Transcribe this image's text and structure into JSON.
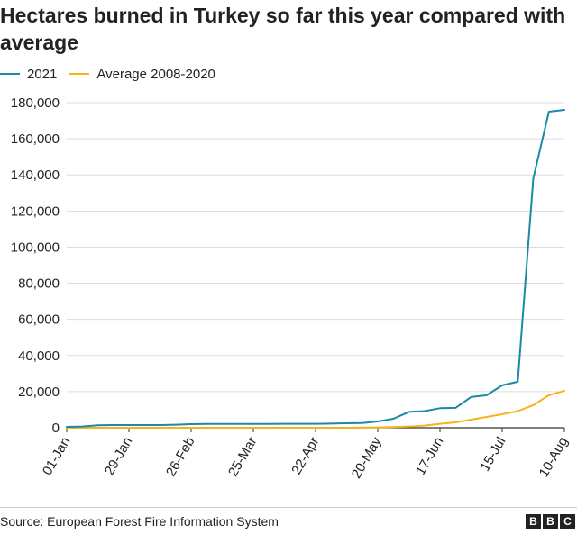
{
  "title": "Hectares burned in Turkey so far this year compared with average",
  "legend": [
    {
      "label": "2021",
      "color": "#1a8aa5"
    },
    {
      "label": "Average 2008-2020",
      "color": "#f5b41b"
    }
  ],
  "source": "Source: European Forest Fire Information System",
  "logo": [
    "B",
    "B",
    "C"
  ],
  "chart_data": {
    "type": "line",
    "xlabel": "",
    "ylabel": "",
    "x": [
      "01-Jan",
      "08-Jan",
      "15-Jan",
      "22-Jan",
      "29-Jan",
      "05-Feb",
      "12-Feb",
      "19-Feb",
      "26-Feb",
      "05-Mar",
      "12-Mar",
      "19-Mar",
      "25-Mar",
      "01-Apr",
      "08-Apr",
      "15-Apr",
      "22-Apr",
      "29-Apr",
      "06-May",
      "13-May",
      "20-May",
      "27-May",
      "03-Jun",
      "10-Jun",
      "17-Jun",
      "24-Jun",
      "01-Jul",
      "08-Jul",
      "15-Jul",
      "22-Jul",
      "29-Jul",
      "05-Aug",
      "10-Aug"
    ],
    "x_tick_labels": [
      "01-Jan",
      "29-Jan",
      "26-Feb",
      "25-Mar",
      "22-Apr",
      "20-May",
      "17-Jun",
      "15-Jul",
      "10-Aug"
    ],
    "x_tick_index": [
      0,
      4,
      8,
      12,
      16,
      20,
      24,
      28,
      32
    ],
    "ylim": [
      0,
      180000
    ],
    "y_ticks": [
      0,
      20000,
      40000,
      60000,
      80000,
      100000,
      120000,
      140000,
      160000,
      180000
    ],
    "y_tick_labels": [
      "0",
      "20,000",
      "40,000",
      "60,000",
      "80,000",
      "100,000",
      "120,000",
      "140,000",
      "160,000",
      "180,000"
    ],
    "grid": "horizontal",
    "legend_position": "top-left",
    "series": [
      {
        "name": "2021",
        "color": "#1a8aa5",
        "values": [
          500,
          700,
          1400,
          1500,
          1500,
          1500,
          1500,
          1700,
          2000,
          2100,
          2100,
          2100,
          2100,
          2100,
          2200,
          2200,
          2200,
          2300,
          2500,
          2600,
          3500,
          5000,
          8800,
          9200,
          10800,
          11000,
          17000,
          18000,
          23500,
          25500,
          138000,
          175000,
          176000
        ]
      },
      {
        "name": "Average 2008-2020",
        "color": "#f5b41b",
        "values": [
          0,
          0,
          0,
          0,
          0,
          0,
          0,
          0,
          0,
          0,
          0,
          0,
          0,
          0,
          0,
          0,
          0,
          0,
          0,
          100,
          200,
          400,
          700,
          1200,
          2200,
          3000,
          4500,
          6000,
          7500,
          9200,
          12500,
          18000,
          20500
        ]
      }
    ]
  }
}
